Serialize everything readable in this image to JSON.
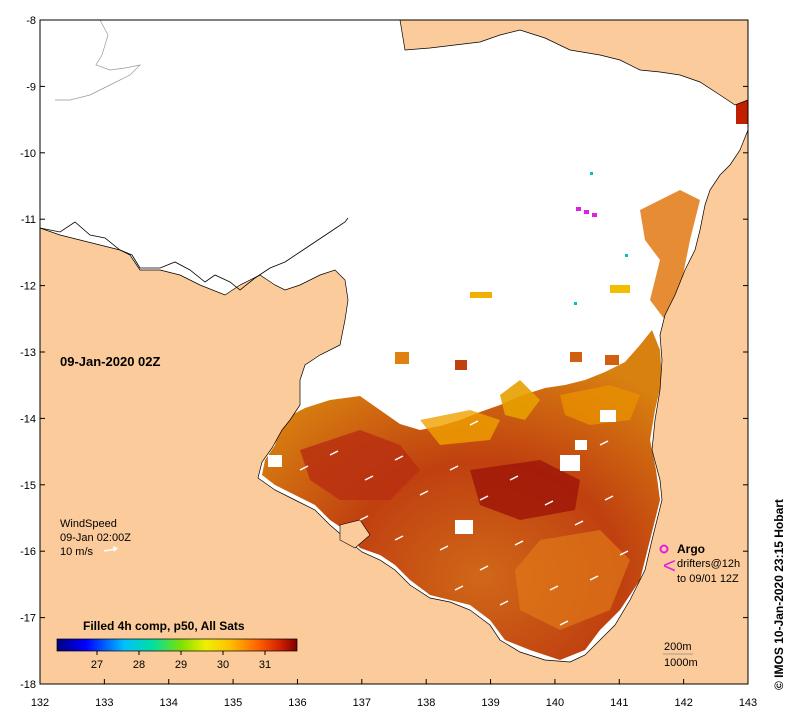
{
  "map": {
    "date_label": "09-Jan-2020 02Z",
    "credit": "© IMOS 10-Jan-2020 23:15 Hobart",
    "x_ticks": [
      "132",
      "133",
      "134",
      "135",
      "136",
      "137",
      "138",
      "139",
      "140",
      "141",
      "142",
      "143"
    ],
    "y_ticks": [
      "-8",
      "-9",
      "-10",
      "-11",
      "-12",
      "-13",
      "-14",
      "-15",
      "-16",
      "-17",
      "-18"
    ],
    "wind": {
      "title": "WindSpeed",
      "time": "09-Jan 02:00Z",
      "scale": "10 m/s"
    },
    "legend": {
      "argo": "Argo",
      "drifters": "drifters@12h",
      "drifters_to": "to 09/01 12Z"
    },
    "depth": {
      "contour_200": "200m",
      "contour_1000": "1000m"
    },
    "colorbar": {
      "title": "Filled 4h comp, p50, All Sats",
      "ticks": [
        "27",
        "28",
        "29",
        "30",
        "31"
      ]
    },
    "colors": {
      "land": "#FCCB9B",
      "sea_no_data": "#FFFFFF",
      "argo_marker": "#E020E0"
    }
  }
}
